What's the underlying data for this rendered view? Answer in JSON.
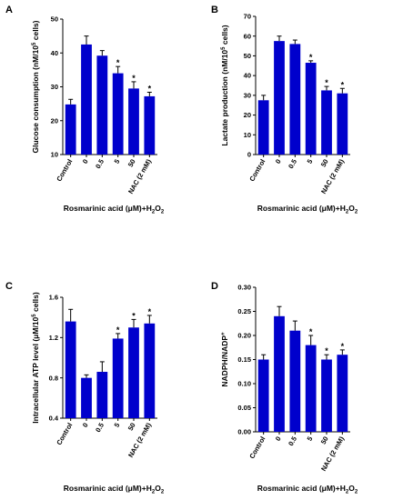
{
  "chart_data": [
    {
      "panel": "A",
      "type": "bar",
      "categories": [
        "Control",
        "0",
        "0.5",
        "5",
        "50",
        "NAC (2 mM)"
      ],
      "values": [
        24.8,
        42.5,
        39.2,
        34.0,
        29.5,
        27.2
      ],
      "errors": [
        1.5,
        2.5,
        1.5,
        2.0,
        2.0,
        1.2
      ],
      "significant": [
        false,
        false,
        false,
        true,
        true,
        true
      ],
      "significance_mark": "*",
      "ylabel_main": "Glucose consumption (nM/10",
      "ylabel_sup": "5",
      "ylabel_end": " cells)",
      "xlabel_main": "Rosmarinic acid (μM)+H",
      "xlabel_sub1": "2",
      "xlabel_mid": "O",
      "xlabel_sub2": "2",
      "ylim": [
        10,
        50
      ],
      "yticks": [
        10,
        20,
        30,
        40,
        50
      ],
      "ytick_labels": [
        "10",
        "20",
        "30",
        "40",
        "50"
      ]
    },
    {
      "panel": "B",
      "type": "bar",
      "categories": [
        "Control",
        "0",
        "0.5",
        "5",
        "50",
        "NAC (2 mM)"
      ],
      "values": [
        27.5,
        57.5,
        56.0,
        46.5,
        32.5,
        31.0
      ],
      "errors": [
        2.5,
        2.5,
        2.0,
        1.0,
        2.0,
        2.5
      ],
      "significant": [
        false,
        false,
        false,
        true,
        true,
        true
      ],
      "significance_mark": "*",
      "ylabel_main": "Lactate production (nM/10",
      "ylabel_sup": "5",
      "ylabel_end": " cells)",
      "xlabel_main": "Rosmarinic acid (μM)+H",
      "xlabel_sub1": "2",
      "xlabel_mid": "O",
      "xlabel_sub2": "2",
      "ylim": [
        0,
        70
      ],
      "yticks": [
        0,
        10,
        20,
        30,
        40,
        50,
        60,
        70
      ],
      "ytick_labels": [
        "0",
        "10",
        "20",
        "30",
        "40",
        "50",
        "60",
        "70"
      ]
    },
    {
      "panel": "C",
      "type": "bar",
      "categories": [
        "Control",
        "0",
        "0.5",
        "5",
        "50",
        "NAC (2 mM)"
      ],
      "values": [
        1.36,
        0.8,
        0.86,
        1.19,
        1.3,
        1.34
      ],
      "errors": [
        0.12,
        0.03,
        0.1,
        0.05,
        0.08,
        0.08
      ],
      "significant": [
        false,
        false,
        false,
        true,
        true,
        true
      ],
      "significance_mark": "*",
      "ylabel_main": "Intracellular ATP level (μM/10",
      "ylabel_sup": "5",
      "ylabel_end": " cells)",
      "xlabel_main": "Rosmarinic acid (μM)+H",
      "xlabel_sub1": "2",
      "xlabel_mid": "O",
      "xlabel_sub2": "2",
      "ylim": [
        0.4,
        1.6
      ],
      "yticks": [
        0.4,
        0.8,
        1.2,
        1.6
      ],
      "ytick_labels": [
        "0.4",
        "0.8",
        "1.2",
        "1.6"
      ]
    },
    {
      "panel": "D",
      "type": "bar",
      "categories": [
        "Control",
        "0",
        "0.5",
        "5",
        "50",
        "NAC (2 mM)"
      ],
      "values": [
        0.15,
        0.24,
        0.21,
        0.18,
        0.15,
        0.16
      ],
      "errors": [
        0.01,
        0.02,
        0.02,
        0.02,
        0.01,
        0.01
      ],
      "significant": [
        false,
        false,
        false,
        true,
        true,
        true
      ],
      "significance_mark": "*",
      "ylabel_main": "NADPH/NADP",
      "ylabel_sup": "+",
      "ylabel_end": "",
      "xlabel_main": "Rosmarinic acid (μM)+H",
      "xlabel_sub1": "2",
      "xlabel_mid": "O",
      "xlabel_sub2": "2",
      "ylim": [
        0.0,
        0.3
      ],
      "yticks": [
        0.0,
        0.05,
        0.1,
        0.15,
        0.2,
        0.25,
        0.3
      ],
      "ytick_labels": [
        "0.00",
        "0.05",
        "0.10",
        "0.15",
        "0.20",
        "0.25",
        "0.30"
      ]
    }
  ],
  "colors": {
    "bar": "#0000cc",
    "axis": "#000000"
  }
}
